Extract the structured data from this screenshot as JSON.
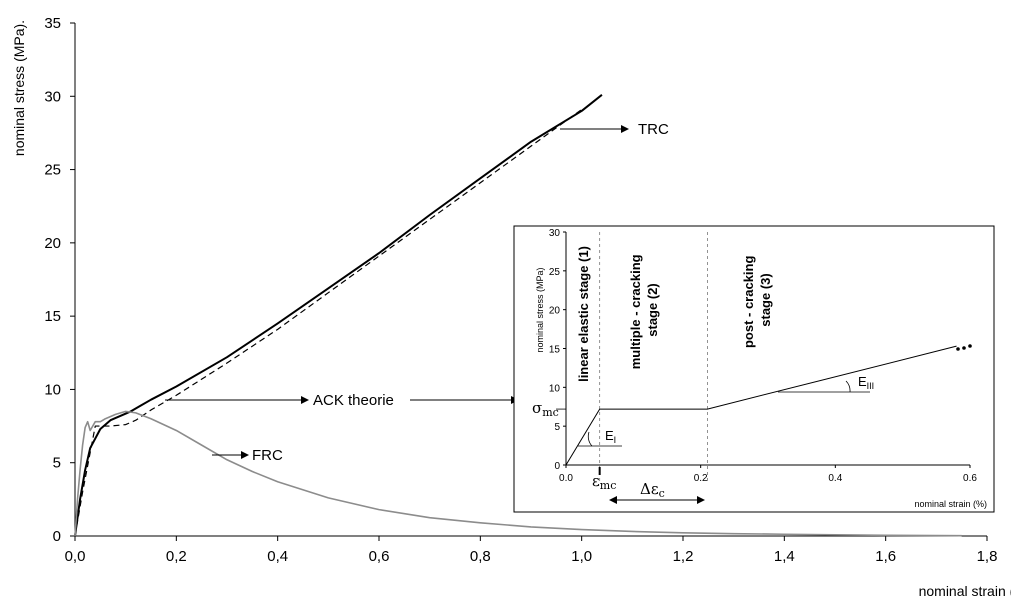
{
  "chart_data": [
    {
      "type": "line",
      "xlabel": "nominal strain (%)",
      "ylabel": "nominal stress (MPa).",
      "xlim": [
        0,
        1.8
      ],
      "ylim": [
        0,
        35
      ],
      "x_ticks": [
        "0,0",
        "0,2",
        "0,4",
        "0,6",
        "0,8",
        "1,0",
        "1,2",
        "1,4",
        "1,6",
        "1,8"
      ],
      "y_ticks": [
        "0",
        "5",
        "10",
        "15",
        "20",
        "25",
        "30",
        "35"
      ],
      "grid": false,
      "series": [
        {
          "name": "TRC",
          "color": "#000000",
          "style": "solid",
          "x": [
            0,
            0.01,
            0.02,
            0.03,
            0.05,
            0.07,
            0.09,
            0.11,
            0.13,
            0.15,
            0.2,
            0.3,
            0.4,
            0.5,
            0.6,
            0.7,
            0.8,
            0.9,
            1.0,
            1.04
          ],
          "y": [
            0,
            2.5,
            4.5,
            6.0,
            7.3,
            7.9,
            8.2,
            8.5,
            8.9,
            9.3,
            10.2,
            12.2,
            14.5,
            16.9,
            19.3,
            21.9,
            24.4,
            26.9,
            29.0,
            30.1
          ]
        },
        {
          "name": "ACK theorie",
          "color": "#000000",
          "style": "dashed",
          "x": [
            0,
            0.015,
            0.04,
            0.07,
            0.1,
            0.12,
            0.15,
            0.2,
            0.3,
            0.4,
            0.5,
            0.6,
            0.7,
            0.8,
            0.9,
            1.0
          ],
          "y": [
            0,
            3.0,
            7.5,
            7.5,
            7.6,
            7.9,
            8.6,
            9.6,
            11.8,
            14.1,
            16.6,
            19.1,
            21.6,
            24.1,
            26.6,
            29.1
          ]
        },
        {
          "name": "FRC",
          "color": "#8c8c8c",
          "style": "solid",
          "x": [
            0,
            0.005,
            0.01,
            0.015,
            0.02,
            0.025,
            0.03,
            0.04,
            0.05,
            0.06,
            0.08,
            0.1,
            0.12,
            0.15,
            0.2,
            0.25,
            0.3,
            0.35,
            0.4,
            0.5,
            0.6,
            0.7,
            0.8,
            0.9,
            1.0,
            1.1,
            1.2,
            1.3,
            1.4,
            1.5,
            1.6,
            1.7,
            1.75
          ],
          "y": [
            0,
            2.5,
            4.5,
            6.2,
            7.4,
            7.8,
            7.2,
            7.8,
            7.8,
            8.0,
            8.3,
            8.5,
            8.4,
            8.0,
            7.2,
            6.2,
            5.2,
            4.4,
            3.7,
            2.6,
            1.8,
            1.25,
            0.9,
            0.62,
            0.44,
            0.31,
            0.22,
            0.16,
            0.12,
            0.08,
            0.05,
            0.03,
            0.02
          ]
        }
      ],
      "annotations": [
        {
          "text": "TRC",
          "x": 1.28,
          "y": 27.5
        },
        {
          "text": "ACK theorie",
          "x": 0.93,
          "y": 9.3
        },
        {
          "text": "FRC",
          "x": 0.35,
          "y": 5.6
        }
      ]
    },
    {
      "type": "line",
      "xlabel": "nominal strain (%)",
      "ylabel": "nominal stress (MPa)",
      "xlim": [
        0,
        0.6
      ],
      "ylim": [
        0,
        30
      ],
      "x_ticks": [
        "0.0",
        "0.2",
        "0.4",
        "0.6"
      ],
      "y_ticks": [
        "0",
        "5",
        "10",
        "15",
        "20",
        "25",
        "30"
      ],
      "series": [
        {
          "name": "",
          "color": "#000000",
          "style": "solid",
          "x": [
            0,
            0.05,
            0.21,
            0.58
          ],
          "y": [
            0,
            7.2,
            7.2,
            15.3
          ]
        }
      ],
      "stage_labels": [
        "linear elastic stage (1)",
        "multiple - cracking stage (2)",
        "post - cracking stage (3)"
      ],
      "symbols": {
        "sigma_mc": "σmc",
        "epsilon_mc": "εmc",
        "delta_epsilon_c": "Δεc",
        "E_I": "EI",
        "E_III": "EIII"
      }
    }
  ]
}
